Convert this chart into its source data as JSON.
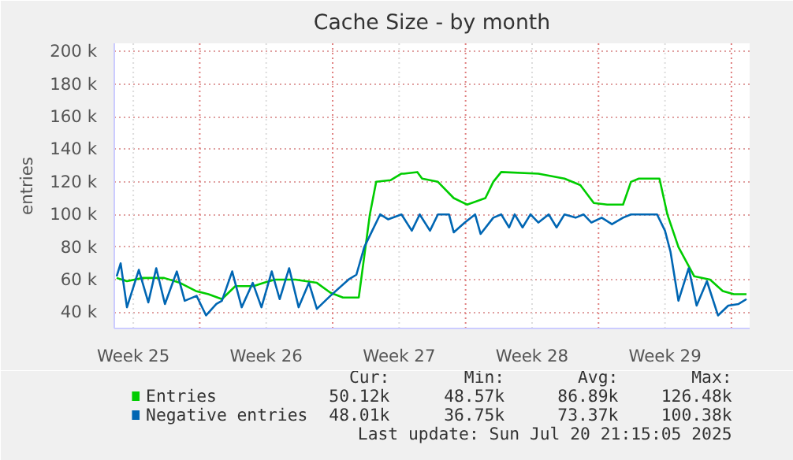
{
  "chart_data": {
    "type": "line",
    "title": "Cache Size - by month",
    "ylabel": "entries",
    "xlim": [
      "2025-06-17T12:00",
      "2025-07-20T23:00"
    ],
    "ylim": [
      30000,
      205000
    ],
    "xticks": [
      {
        "value": "2025-06-18T12:00",
        "label": "Week 25"
      },
      {
        "value": "2025-06-25T12:00",
        "label": "Week 26"
      },
      {
        "value": "2025-07-02T12:00",
        "label": "Week 27"
      },
      {
        "value": "2025-07-09T12:00",
        "label": "Week 28"
      },
      {
        "value": "2025-07-16T12:00",
        "label": "Week 29"
      },
      {
        "value": "2025-06-22T00:00",
        "label": null
      },
      {
        "value": "2025-06-29T00:00",
        "label": null
      },
      {
        "value": "2025-07-06T00:00",
        "label": null
      },
      {
        "value": "2025-07-13T00:00",
        "label": null
      },
      {
        "value": "2025-07-20T00:00",
        "label": null
      }
    ],
    "yticks": [
      {
        "value": 40000,
        "label": "40 k"
      },
      {
        "value": 60000,
        "label": "60 k"
      },
      {
        "value": 80000,
        "label": "80 k"
      },
      {
        "value": 100000,
        "label": "100 k"
      },
      {
        "value": 120000,
        "label": "120 k"
      },
      {
        "value": 140000,
        "label": "140 k"
      },
      {
        "value": 160000,
        "label": "160 k"
      },
      {
        "value": 180000,
        "label": "180 k"
      },
      {
        "value": 200000,
        "label": "200 k"
      }
    ],
    "grid": true,
    "legend": "bottom left",
    "line_style": "solid",
    "series": [
      {
        "name": "Entries",
        "color": "#00cc00",
        "x": [
          "2025-06-17T15:00",
          "2025-06-18T04:00",
          "2025-06-19T00:00",
          "2025-06-20T03:00",
          "2025-06-20T23:00",
          "2025-06-21T19:00",
          "2025-06-22T11:00",
          "2025-06-23T04:00",
          "2025-06-23T21:00",
          "2025-06-24T20:00",
          "2025-06-25T09:00",
          "2025-06-25T23:00",
          "2025-06-27T01:00",
          "2025-06-28T04:00",
          "2025-06-28T21:00",
          "2025-06-29T13:00",
          "2025-06-30T09:00",
          "2025-06-30T23:00",
          "2025-07-01T07:00",
          "2025-07-02T01:00",
          "2025-07-02T15:00",
          "2025-07-02T18:00",
          "2025-07-03T11:00",
          "2025-07-03T17:00",
          "2025-07-04T13:00",
          "2025-07-05T09:00",
          "2025-07-06T02:00",
          "2025-07-07T01:00",
          "2025-07-07T11:00",
          "2025-07-07T21:00",
          "2025-07-09T20:00",
          "2025-07-11T05:00",
          "2025-07-12T01:00",
          "2025-07-12T18:00",
          "2025-07-13T11:00",
          "2025-07-14T07:00",
          "2025-07-14T17:00",
          "2025-07-15T03:00",
          "2025-07-15T23:00",
          "2025-07-16T05:00",
          "2025-07-16T15:00",
          "2025-07-17T05:00",
          "2025-07-18T01:00",
          "2025-07-18T21:00",
          "2025-07-19T13:00",
          "2025-07-20T03:00",
          "2025-07-20T19:00"
        ],
        "values": [
          61000,
          59000,
          61000,
          61000,
          58000,
          53000,
          51000,
          48000,
          56000,
          56000,
          58000,
          60000,
          60000,
          58000,
          52000,
          49000,
          49000,
          100000,
          120000,
          121000,
          125000,
          125000,
          126000,
          122000,
          120000,
          110000,
          106000,
          110000,
          120000,
          126000,
          125000,
          122000,
          118000,
          107000,
          106000,
          106000,
          120000,
          122000,
          122000,
          122000,
          100000,
          80000,
          62000,
          60000,
          53000,
          51000,
          51000
        ]
      },
      {
        "name": "Negative entries",
        "color": "#0066b3",
        "x": [
          "2025-06-17T15:00",
          "2025-06-17T20:00",
          "2025-06-18T04:00",
          "2025-06-18T19:00",
          "2025-06-19T07:00",
          "2025-06-19T17:00",
          "2025-06-20T04:00",
          "2025-06-20T19:00",
          "2025-06-21T05:00",
          "2025-06-21T20:00",
          "2025-06-22T08:00",
          "2025-06-22T21:00",
          "2025-06-23T04:00",
          "2025-06-23T17:00",
          "2025-06-24T05:00",
          "2025-06-24T19:00",
          "2025-06-25T06:00",
          "2025-06-25T19:00",
          "2025-06-26T05:00",
          "2025-06-26T17:00",
          "2025-06-27T05:00",
          "2025-06-27T18:00",
          "2025-06-28T04:00",
          "2025-06-28T21:00",
          "2025-06-29T20:00",
          "2025-06-30T06:00",
          "2025-06-30T16:00",
          "2025-07-01T02:00",
          "2025-07-01T12:00",
          "2025-07-01T22:00",
          "2025-07-02T15:00",
          "2025-07-03T04:00",
          "2025-07-03T14:00",
          "2025-07-04T03:00",
          "2025-07-04T13:00",
          "2025-07-05T03:00",
          "2025-07-05T09:00",
          "2025-07-05T23:00",
          "2025-07-06T12:00",
          "2025-07-06T19:00",
          "2025-07-07T11:00",
          "2025-07-07T21:00",
          "2025-07-08T07:00",
          "2025-07-08T14:00",
          "2025-07-09T00:00",
          "2025-07-09T10:00",
          "2025-07-09T20:00",
          "2025-07-10T09:00",
          "2025-07-10T19:00",
          "2025-07-11T05:00",
          "2025-07-11T19:00",
          "2025-07-12T05:00",
          "2025-07-12T15:00",
          "2025-07-13T04:00",
          "2025-07-13T17:00",
          "2025-07-14T07:00",
          "2025-07-14T17:00",
          "2025-07-15T09:00",
          "2025-07-16T02:00",
          "2025-07-16T12:00",
          "2025-07-16T19:00",
          "2025-07-17T05:00",
          "2025-07-17T18:00",
          "2025-07-18T04:00",
          "2025-07-18T17:00",
          "2025-07-19T07:00",
          "2025-07-19T20:00",
          "2025-07-20T09:00",
          "2025-07-20T19:00"
        ],
        "values": [
          62000,
          70000,
          43000,
          66000,
          46000,
          67000,
          45000,
          65000,
          47000,
          50000,
          38000,
          45000,
          47000,
          65000,
          43000,
          58000,
          43000,
          65000,
          48000,
          67000,
          43000,
          58000,
          42000,
          50000,
          60000,
          63000,
          80000,
          90000,
          100000,
          97000,
          100000,
          90000,
          100000,
          90000,
          100000,
          100000,
          89000,
          95000,
          100000,
          88000,
          98000,
          100000,
          92000,
          100000,
          92000,
          100000,
          95000,
          100000,
          92000,
          100000,
          98000,
          100000,
          95000,
          98000,
          94000,
          98000,
          100000,
          100000,
          100000,
          90000,
          77000,
          47000,
          67000,
          44000,
          59000,
          38000,
          44000,
          45000,
          48000
        ]
      }
    ],
    "annotations": [
      "Cur:",
      "Min:",
      "Avg:",
      "Max:",
      "50.12k",
      "48.57k",
      "86.89k",
      "126.48k",
      "48.01k",
      "36.75k",
      "73.37k",
      "100.38k",
      "Last update: Sun Jul 20 21:15:05 2025"
    ]
  }
}
